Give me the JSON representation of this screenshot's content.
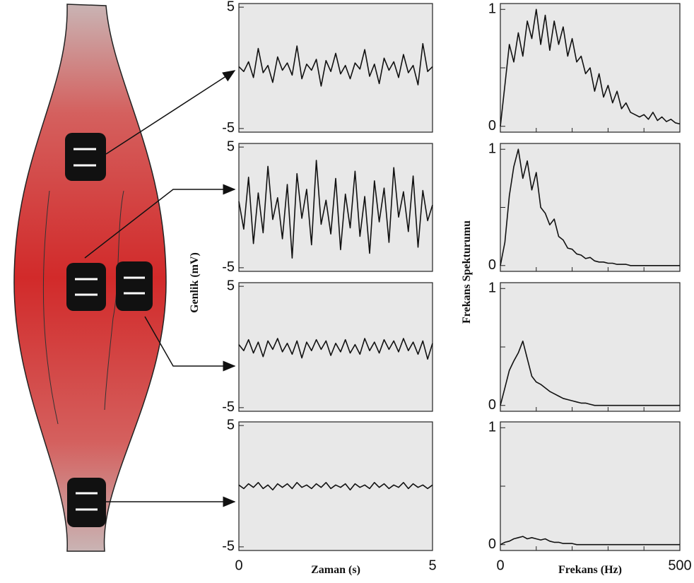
{
  "chart_data": [
    {
      "type": "line",
      "color": "#111111",
      "xlim": [
        0,
        5
      ],
      "ylim": [
        -5.3,
        5.3
      ],
      "yticks": [
        -5,
        5
      ],
      "x": [
        0,
        0.125,
        0.25,
        0.375,
        0.5,
        0.625,
        0.75,
        0.875,
        1,
        1.125,
        1.25,
        1.375,
        1.5,
        1.625,
        1.75,
        1.875,
        2,
        2.125,
        2.25,
        2.375,
        2.5,
        2.625,
        2.75,
        2.875,
        3,
        3.125,
        3.25,
        3.375,
        3.5,
        3.625,
        3.75,
        3.875,
        4,
        4.125,
        4.25,
        4.375,
        4.5,
        4.625,
        4.75,
        4.875,
        5
      ],
      "values": [
        0.1,
        -0.3,
        0.5,
        -0.8,
        1.6,
        -0.4,
        0.2,
        -1.2,
        0.9,
        -0.2,
        0.4,
        -0.6,
        1.8,
        -0.9,
        0.3,
        -0.2,
        0.7,
        -1.5,
        0.6,
        -0.3,
        1.2,
        -0.5,
        0.2,
        -0.9,
        0.4,
        -0.1,
        1.5,
        -0.7,
        0.3,
        -1.3,
        0.8,
        -0.2,
        0.5,
        -0.8,
        1.1,
        -0.4,
        0.2,
        -1.4,
        2.0,
        -0.3,
        0.1
      ]
    },
    {
      "type": "line",
      "color": "#111111",
      "xlim": [
        0,
        5
      ],
      "ylim": [
        -5.3,
        5.3
      ],
      "yticks": [
        -5,
        5
      ],
      "ylabel": "Genlik (mV)",
      "x": [
        0,
        0.125,
        0.25,
        0.375,
        0.5,
        0.625,
        0.75,
        0.875,
        1,
        1.125,
        1.25,
        1.375,
        1.5,
        1.625,
        1.75,
        1.875,
        2,
        2.125,
        2.25,
        2.375,
        2.5,
        2.625,
        2.75,
        2.875,
        3,
        3.125,
        3.25,
        3.375,
        3.5,
        3.625,
        3.75,
        3.875,
        4,
        4.125,
        4.25,
        4.375,
        4.5,
        4.625,
        4.75,
        4.875,
        5
      ],
      "values": [
        0.5,
        -1.8,
        2.5,
        -3.0,
        1.2,
        -2.1,
        3.4,
        -1.0,
        0.8,
        -2.6,
        1.9,
        -4.2,
        2.8,
        -0.9,
        1.5,
        -3.1,
        3.9,
        -1.4,
        0.6,
        -2.2,
        2.4,
        -3.5,
        1.1,
        -1.7,
        3.0,
        -2.4,
        0.9,
        -3.8,
        2.2,
        -1.2,
        1.6,
        -2.9,
        3.3,
        -0.8,
        1.3,
        -2.0,
        2.6,
        -3.3,
        1.4,
        -1.1,
        0.2
      ]
    },
    {
      "type": "line",
      "color": "#111111",
      "xlim": [
        0,
        5
      ],
      "ylim": [
        -5.3,
        5.3
      ],
      "yticks": [
        -5,
        5
      ],
      "x": [
        0,
        0.125,
        0.25,
        0.375,
        0.5,
        0.625,
        0.75,
        0.875,
        1,
        1.125,
        1.25,
        1.375,
        1.5,
        1.625,
        1.75,
        1.875,
        2,
        2.125,
        2.25,
        2.375,
        2.5,
        2.625,
        2.75,
        2.875,
        3,
        3.125,
        3.25,
        3.375,
        3.5,
        3.625,
        3.75,
        3.875,
        4,
        4.125,
        4.25,
        4.375,
        4.5,
        4.625,
        4.75,
        4.875,
        5
      ],
      "values": [
        0.2,
        -0.3,
        0.6,
        -0.5,
        0.4,
        -0.8,
        0.5,
        -0.2,
        0.7,
        -0.4,
        0.3,
        -0.6,
        0.5,
        -0.9,
        0.4,
        -0.3,
        0.6,
        -0.2,
        0.5,
        -0.7,
        0.3,
        -0.4,
        0.6,
        -0.5,
        0.2,
        -0.6,
        0.7,
        -0.3,
        0.4,
        -0.5,
        0.6,
        -0.2,
        0.5,
        -0.4,
        0.7,
        -0.3,
        0.4,
        -0.6,
        0.5,
        -1.0,
        0.3
      ]
    },
    {
      "type": "line",
      "color": "#111111",
      "xlim": [
        0,
        5
      ],
      "ylim": [
        -5.3,
        5.3
      ],
      "yticks": [
        -5,
        5
      ],
      "xticks": [
        0,
        5
      ],
      "xlabel": "Zaman (s)",
      "x": [
        0,
        0.125,
        0.25,
        0.375,
        0.5,
        0.625,
        0.75,
        0.875,
        1,
        1.125,
        1.25,
        1.375,
        1.5,
        1.625,
        1.75,
        1.875,
        2,
        2.125,
        2.25,
        2.375,
        2.5,
        2.625,
        2.75,
        2.875,
        3,
        3.125,
        3.25,
        3.375,
        3.5,
        3.625,
        3.75,
        3.875,
        4,
        4.125,
        4.25,
        4.375,
        4.5,
        4.625,
        4.75,
        4.875,
        5
      ],
      "values": [
        0.1,
        -0.2,
        0.2,
        -0.1,
        0.3,
        -0.2,
        0.1,
        -0.3,
        0.2,
        -0.1,
        0.2,
        -0.2,
        0.3,
        -0.1,
        0.1,
        -0.2,
        0.2,
        -0.1,
        0.3,
        -0.2,
        0.1,
        -0.1,
        0.2,
        -0.3,
        0.2,
        -0.1,
        0.1,
        -0.2,
        0.3,
        -0.1,
        0.2,
        -0.2,
        0.1,
        -0.1,
        0.3,
        -0.2,
        0.2,
        -0.1,
        0.1,
        -0.2,
        0.1
      ]
    },
    {
      "type": "line",
      "color": "#111111",
      "xlim": [
        0,
        500
      ],
      "ylim": [
        -0.05,
        1.05
      ],
      "yticks": [
        0,
        1
      ],
      "minor_yticks": [
        0.5
      ],
      "minor_xticks": [
        100,
        200,
        300,
        400
      ],
      "x": [
        0,
        12.5,
        25,
        37.5,
        50,
        62.5,
        75,
        87.5,
        100,
        112.5,
        125,
        137.5,
        150,
        162.5,
        175,
        187.5,
        200,
        212.5,
        225,
        237.5,
        250,
        262.5,
        275,
        287.5,
        300,
        312.5,
        325,
        337.5,
        350,
        362.5,
        375,
        387.5,
        400,
        412.5,
        425,
        437.5,
        450,
        462.5,
        475,
        487.5,
        500
      ],
      "values": [
        0,
        0.35,
        0.7,
        0.55,
        0.8,
        0.6,
        0.9,
        0.75,
        1.0,
        0.7,
        0.95,
        0.65,
        0.9,
        0.7,
        0.85,
        0.6,
        0.75,
        0.55,
        0.6,
        0.45,
        0.5,
        0.3,
        0.45,
        0.25,
        0.35,
        0.2,
        0.3,
        0.15,
        0.2,
        0.12,
        0.1,
        0.08,
        0.1,
        0.06,
        0.12,
        0.05,
        0.08,
        0.04,
        0.06,
        0.03,
        0.02
      ]
    },
    {
      "type": "line",
      "color": "#111111",
      "xlim": [
        0,
        500
      ],
      "ylim": [
        -0.05,
        1.05
      ],
      "yticks": [
        0,
        1
      ],
      "minor_yticks": [
        0.5
      ],
      "minor_xticks": [
        100,
        200,
        300,
        400
      ],
      "ylabel": "Frekans Spekturumu",
      "x": [
        0,
        12.5,
        25,
        37.5,
        50,
        62.5,
        75,
        87.5,
        100,
        112.5,
        125,
        137.5,
        150,
        162.5,
        175,
        187.5,
        200,
        212.5,
        225,
        237.5,
        250,
        262.5,
        275,
        287.5,
        300,
        312.5,
        325,
        337.5,
        350,
        362.5,
        375,
        387.5,
        400,
        412.5,
        425,
        437.5,
        450,
        462.5,
        475,
        487.5,
        500
      ],
      "values": [
        0,
        0.2,
        0.6,
        0.85,
        1.0,
        0.75,
        0.9,
        0.65,
        0.8,
        0.5,
        0.45,
        0.35,
        0.4,
        0.25,
        0.22,
        0.15,
        0.14,
        0.1,
        0.09,
        0.06,
        0.07,
        0.04,
        0.03,
        0.03,
        0.02,
        0.02,
        0.01,
        0.01,
        0.01,
        0,
        0,
        0,
        0,
        0,
        0,
        0,
        0,
        0,
        0,
        0,
        0
      ]
    },
    {
      "type": "line",
      "color": "#111111",
      "xlim": [
        0,
        500
      ],
      "ylim": [
        -0.05,
        1.05
      ],
      "yticks": [
        0,
        1
      ],
      "minor_yticks": [
        0.5
      ],
      "minor_xticks": [
        100,
        200,
        300,
        400
      ],
      "x": [
        0,
        12.5,
        25,
        37.5,
        50,
        62.5,
        75,
        87.5,
        100,
        112.5,
        125,
        137.5,
        150,
        162.5,
        175,
        187.5,
        200,
        212.5,
        225,
        237.5,
        250,
        262.5,
        275,
        287.5,
        300,
        312.5,
        325,
        337.5,
        350,
        362.5,
        375,
        387.5,
        400,
        412.5,
        425,
        437.5,
        450,
        462.5,
        475,
        487.5,
        500
      ],
      "values": [
        0,
        0.15,
        0.3,
        0.38,
        0.45,
        0.55,
        0.4,
        0.25,
        0.2,
        0.18,
        0.15,
        0.12,
        0.1,
        0.08,
        0.06,
        0.05,
        0.04,
        0.03,
        0.02,
        0.02,
        0.01,
        0,
        0,
        0,
        0,
        0,
        0,
        0,
        0,
        0,
        0,
        0,
        0,
        0,
        0,
        0,
        0,
        0,
        0,
        0,
        0
      ]
    },
    {
      "type": "line",
      "color": "#111111",
      "xlim": [
        0,
        500
      ],
      "ylim": [
        -0.05,
        1.05
      ],
      "yticks": [
        0,
        1
      ],
      "minor_yticks": [
        0.5
      ],
      "minor_xticks": [
        100,
        200,
        300,
        400
      ],
      "xticks": [
        0,
        500
      ],
      "xlabel": "Frekans (Hz)",
      "x": [
        0,
        12.5,
        25,
        37.5,
        50,
        62.5,
        75,
        87.5,
        100,
        112.5,
        125,
        137.5,
        150,
        162.5,
        175,
        187.5,
        200,
        212.5,
        225,
        237.5,
        250,
        262.5,
        275,
        287.5,
        300,
        312.5,
        325,
        337.5,
        350,
        362.5,
        375,
        387.5,
        400,
        412.5,
        425,
        437.5,
        450,
        462.5,
        475,
        487.5,
        500
      ],
      "values": [
        0,
        0.02,
        0.03,
        0.05,
        0.06,
        0.07,
        0.05,
        0.06,
        0.05,
        0.04,
        0.05,
        0.03,
        0.02,
        0.02,
        0.01,
        0.01,
        0.01,
        0,
        0,
        0,
        0,
        0,
        0,
        0,
        0,
        0,
        0,
        0,
        0,
        0,
        0,
        0,
        0,
        0,
        0,
        0,
        0,
        0,
        0,
        0,
        0
      ]
    }
  ]
}
